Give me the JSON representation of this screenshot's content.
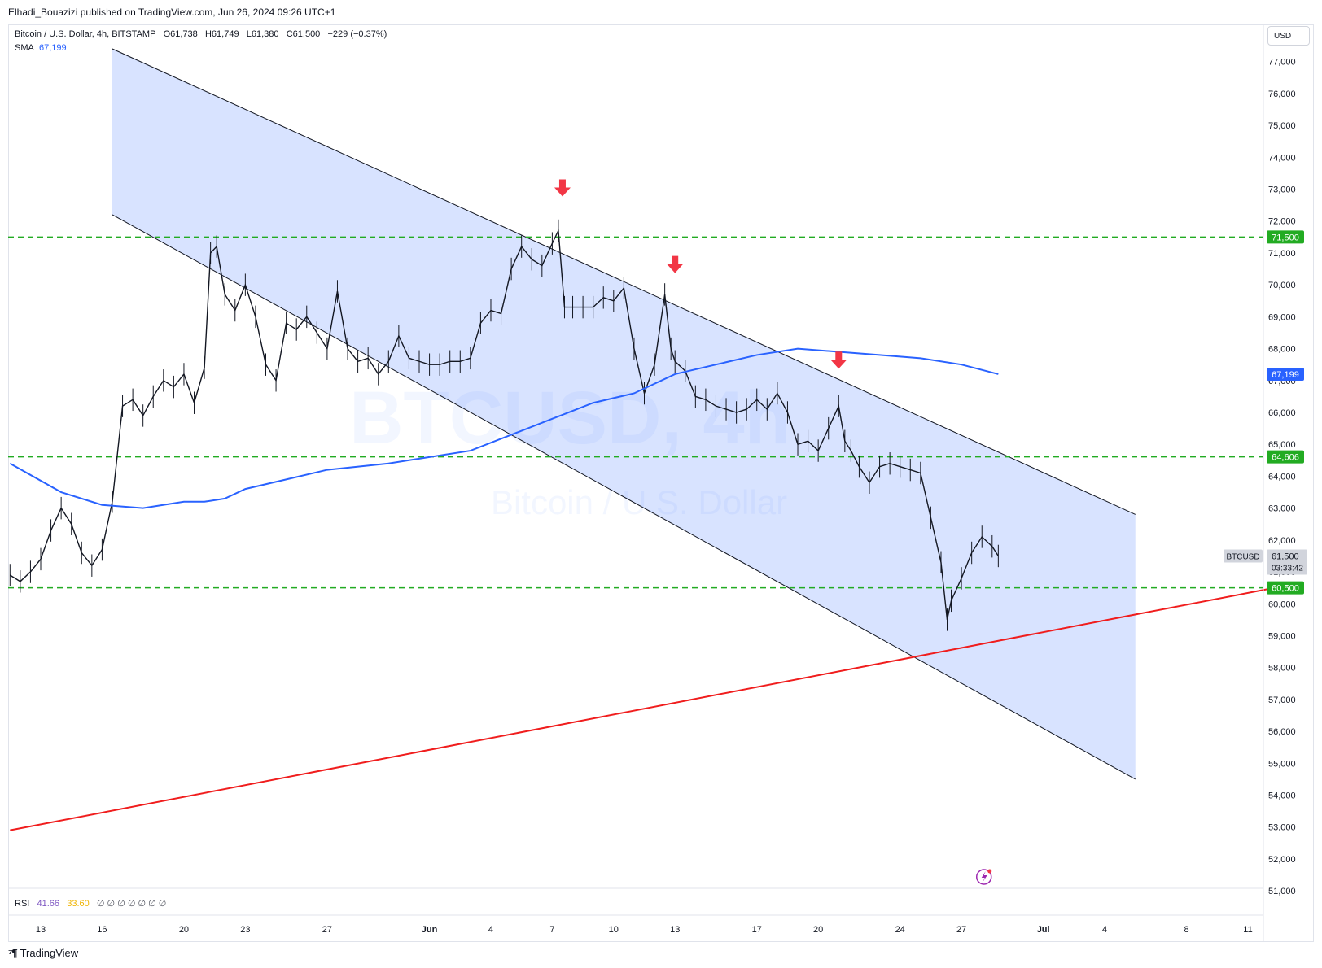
{
  "header": {
    "publish_line": "Elhadi_Bouazizi published on TradingView.com, Jun 26, 2024 09:26 UTC+1"
  },
  "legend": {
    "symbol": "Bitcoin / U.S. Dollar, 4h, BITSTAMP",
    "open_label": "O",
    "open": "61,738",
    "high_label": "H",
    "high": "61,749",
    "low_label": "L",
    "low": "61,380",
    "close_label": "C",
    "close": "61,500",
    "change": "−229 (−0.37%)",
    "sma_label": "SMA",
    "sma_value": "67,199"
  },
  "watermark": {
    "ticker": "BTCUSD, 4h",
    "name": "Bitcoin / U.S. Dollar"
  },
  "currency": "USD",
  "rsi": {
    "label": "RSI",
    "value1": "41.66",
    "value2": "33.60",
    "hidden_markers": "∅ ∅ ∅ ∅ ∅ ∅ ∅"
  },
  "price_tags": [
    {
      "text": "71,500",
      "color": "#22ab22"
    },
    {
      "text": "67,199",
      "color": "#2962ff"
    },
    {
      "text": "64,606",
      "color": "#22ab22"
    },
    {
      "text": "60,500",
      "color": "#22ab22"
    }
  ],
  "last_price": {
    "symbol": "BTCUSD",
    "price": "61,500",
    "countdown": "03:33:42"
  },
  "brand": {
    "text": "TradingView"
  },
  "chart_data": {
    "type": "candlestick",
    "symbol": "BTCUSD",
    "timeframe": "4h",
    "exchange": "BITSTAMP",
    "ylim": [
      50800,
      77400
    ],
    "y_ticks": [
      51000,
      52000,
      53000,
      54000,
      55000,
      56000,
      57000,
      58000,
      59000,
      60000,
      61000,
      62000,
      63000,
      64000,
      65000,
      66000,
      67000,
      68000,
      69000,
      70000,
      71000,
      72000,
      73000,
      74000,
      75000,
      76000,
      77000
    ],
    "x_ticks": [
      {
        "label": "13",
        "day": 13
      },
      {
        "label": "16",
        "day": 16
      },
      {
        "label": "20",
        "day": 20
      },
      {
        "label": "23",
        "day": 23
      },
      {
        "label": "27",
        "day": 27
      },
      {
        "label": "Jun",
        "day": 32
      },
      {
        "label": "4",
        "day": 35
      },
      {
        "label": "7",
        "day": 38
      },
      {
        "label": "10",
        "day": 41
      },
      {
        "label": "13",
        "day": 44
      },
      {
        "label": "17",
        "day": 48
      },
      {
        "label": "20",
        "day": 51
      },
      {
        "label": "24",
        "day": 55
      },
      {
        "label": "27",
        "day": 58
      },
      {
        "label": "Jul",
        "day": 62
      },
      {
        "label": "4",
        "day": 65
      },
      {
        "label": "8",
        "day": 69
      },
      {
        "label": "11",
        "day": 72
      }
    ],
    "price_path": [
      [
        11.5,
        60900
      ],
      [
        12.0,
        60700
      ],
      [
        12.5,
        61000
      ],
      [
        13.0,
        61400
      ],
      [
        13.5,
        62300
      ],
      [
        14.0,
        63000
      ],
      [
        14.5,
        62500
      ],
      [
        15.0,
        61600
      ],
      [
        15.5,
        61200
      ],
      [
        16.0,
        61700
      ],
      [
        16.5,
        63200
      ],
      [
        17.0,
        66200
      ],
      [
        17.5,
        66400
      ],
      [
        18.0,
        65900
      ],
      [
        18.5,
        66500
      ],
      [
        19.0,
        67000
      ],
      [
        19.5,
        66800
      ],
      [
        20.0,
        67200
      ],
      [
        20.5,
        66300
      ],
      [
        21.0,
        67400
      ],
      [
        21.3,
        71000
      ],
      [
        21.6,
        71200
      ],
      [
        22.0,
        69700
      ],
      [
        22.5,
        69200
      ],
      [
        23.0,
        70000
      ],
      [
        23.5,
        69000
      ],
      [
        24.0,
        67500
      ],
      [
        24.5,
        67000
      ],
      [
        25.0,
        68800
      ],
      [
        25.5,
        68600
      ],
      [
        26.0,
        69000
      ],
      [
        26.5,
        68500
      ],
      [
        27.0,
        68000
      ],
      [
        27.5,
        69800
      ],
      [
        28.0,
        68000
      ],
      [
        28.5,
        67600
      ],
      [
        29.0,
        67700
      ],
      [
        29.5,
        67200
      ],
      [
        30.0,
        67600
      ],
      [
        30.5,
        68400
      ],
      [
        31.0,
        67700
      ],
      [
        31.5,
        67600
      ],
      [
        32.0,
        67500
      ],
      [
        32.5,
        67500
      ],
      [
        33.0,
        67600
      ],
      [
        33.5,
        67600
      ],
      [
        34.0,
        67700
      ],
      [
        34.5,
        68800
      ],
      [
        35.0,
        69200
      ],
      [
        35.5,
        69100
      ],
      [
        36.0,
        70500
      ],
      [
        36.5,
        71200
      ],
      [
        37.0,
        70800
      ],
      [
        37.5,
        70600
      ],
      [
        38.0,
        71300
      ],
      [
        38.3,
        71700
      ],
      [
        38.6,
        69300
      ],
      [
        39.0,
        69300
      ],
      [
        39.5,
        69300
      ],
      [
        40.0,
        69300
      ],
      [
        40.5,
        69600
      ],
      [
        41.0,
        69500
      ],
      [
        41.5,
        69900
      ],
      [
        42.0,
        68000
      ],
      [
        42.5,
        66600
      ],
      [
        43.0,
        67500
      ],
      [
        43.5,
        69700
      ],
      [
        43.8,
        68000
      ],
      [
        44.0,
        67600
      ],
      [
        44.5,
        67300
      ],
      [
        45.0,
        66500
      ],
      [
        45.5,
        66400
      ],
      [
        46.0,
        66200
      ],
      [
        46.5,
        66100
      ],
      [
        47.0,
        66000
      ],
      [
        47.5,
        66100
      ],
      [
        48.0,
        66400
      ],
      [
        48.5,
        66100
      ],
      [
        49.0,
        66600
      ],
      [
        49.5,
        66000
      ],
      [
        50.0,
        65000
      ],
      [
        50.5,
        65100
      ],
      [
        51.0,
        64800
      ],
      [
        51.5,
        65500
      ],
      [
        52.0,
        66200
      ],
      [
        52.3,
        65100
      ],
      [
        52.6,
        64800
      ],
      [
        53.0,
        64300
      ],
      [
        53.5,
        63800
      ],
      [
        54.0,
        64300
      ],
      [
        54.5,
        64400
      ],
      [
        55.0,
        64300
      ],
      [
        55.5,
        64200
      ],
      [
        56.0,
        64100
      ],
      [
        56.5,
        62700
      ],
      [
        57.0,
        61300
      ],
      [
        57.3,
        59500
      ],
      [
        57.5,
        60100
      ],
      [
        58.0,
        60800
      ],
      [
        58.5,
        61600
      ],
      [
        59.0,
        62100
      ],
      [
        59.5,
        61800
      ],
      [
        59.8,
        61500
      ]
    ],
    "sma_200": [
      [
        11.5,
        64400
      ],
      [
        14.0,
        63500
      ],
      [
        16.0,
        63100
      ],
      [
        18.0,
        63000
      ],
      [
        20.0,
        63200
      ],
      [
        21.0,
        63200
      ],
      [
        22.0,
        63300
      ],
      [
        23.0,
        63600
      ],
      [
        25.0,
        63900
      ],
      [
        27.0,
        64200
      ],
      [
        30.0,
        64400
      ],
      [
        32.0,
        64600
      ],
      [
        34.0,
        64800
      ],
      [
        36.0,
        65300
      ],
      [
        38.0,
        65800
      ],
      [
        40.0,
        66300
      ],
      [
        42.0,
        66600
      ],
      [
        44.0,
        67200
      ],
      [
        46.0,
        67500
      ],
      [
        48.0,
        67800
      ],
      [
        50.0,
        68000
      ],
      [
        52.0,
        67900
      ],
      [
        54.0,
        67800
      ],
      [
        56.0,
        67700
      ],
      [
        58.0,
        67500
      ],
      [
        59.8,
        67200
      ]
    ],
    "horizontal_levels": [
      71500,
      64606,
      60500
    ],
    "channel": {
      "upper": [
        [
          16.5,
          77400
        ],
        [
          66.5,
          62800
        ]
      ],
      "lower": [
        [
          16.5,
          72200
        ],
        [
          66.5,
          54500
        ]
      ]
    },
    "trendline": [
      [
        11.5,
        52900
      ],
      [
        73.3,
        60500
      ]
    ],
    "arrows": [
      [
        38.5,
        73000
      ],
      [
        44.0,
        70600
      ],
      [
        52.0,
        67600
      ]
    ]
  }
}
